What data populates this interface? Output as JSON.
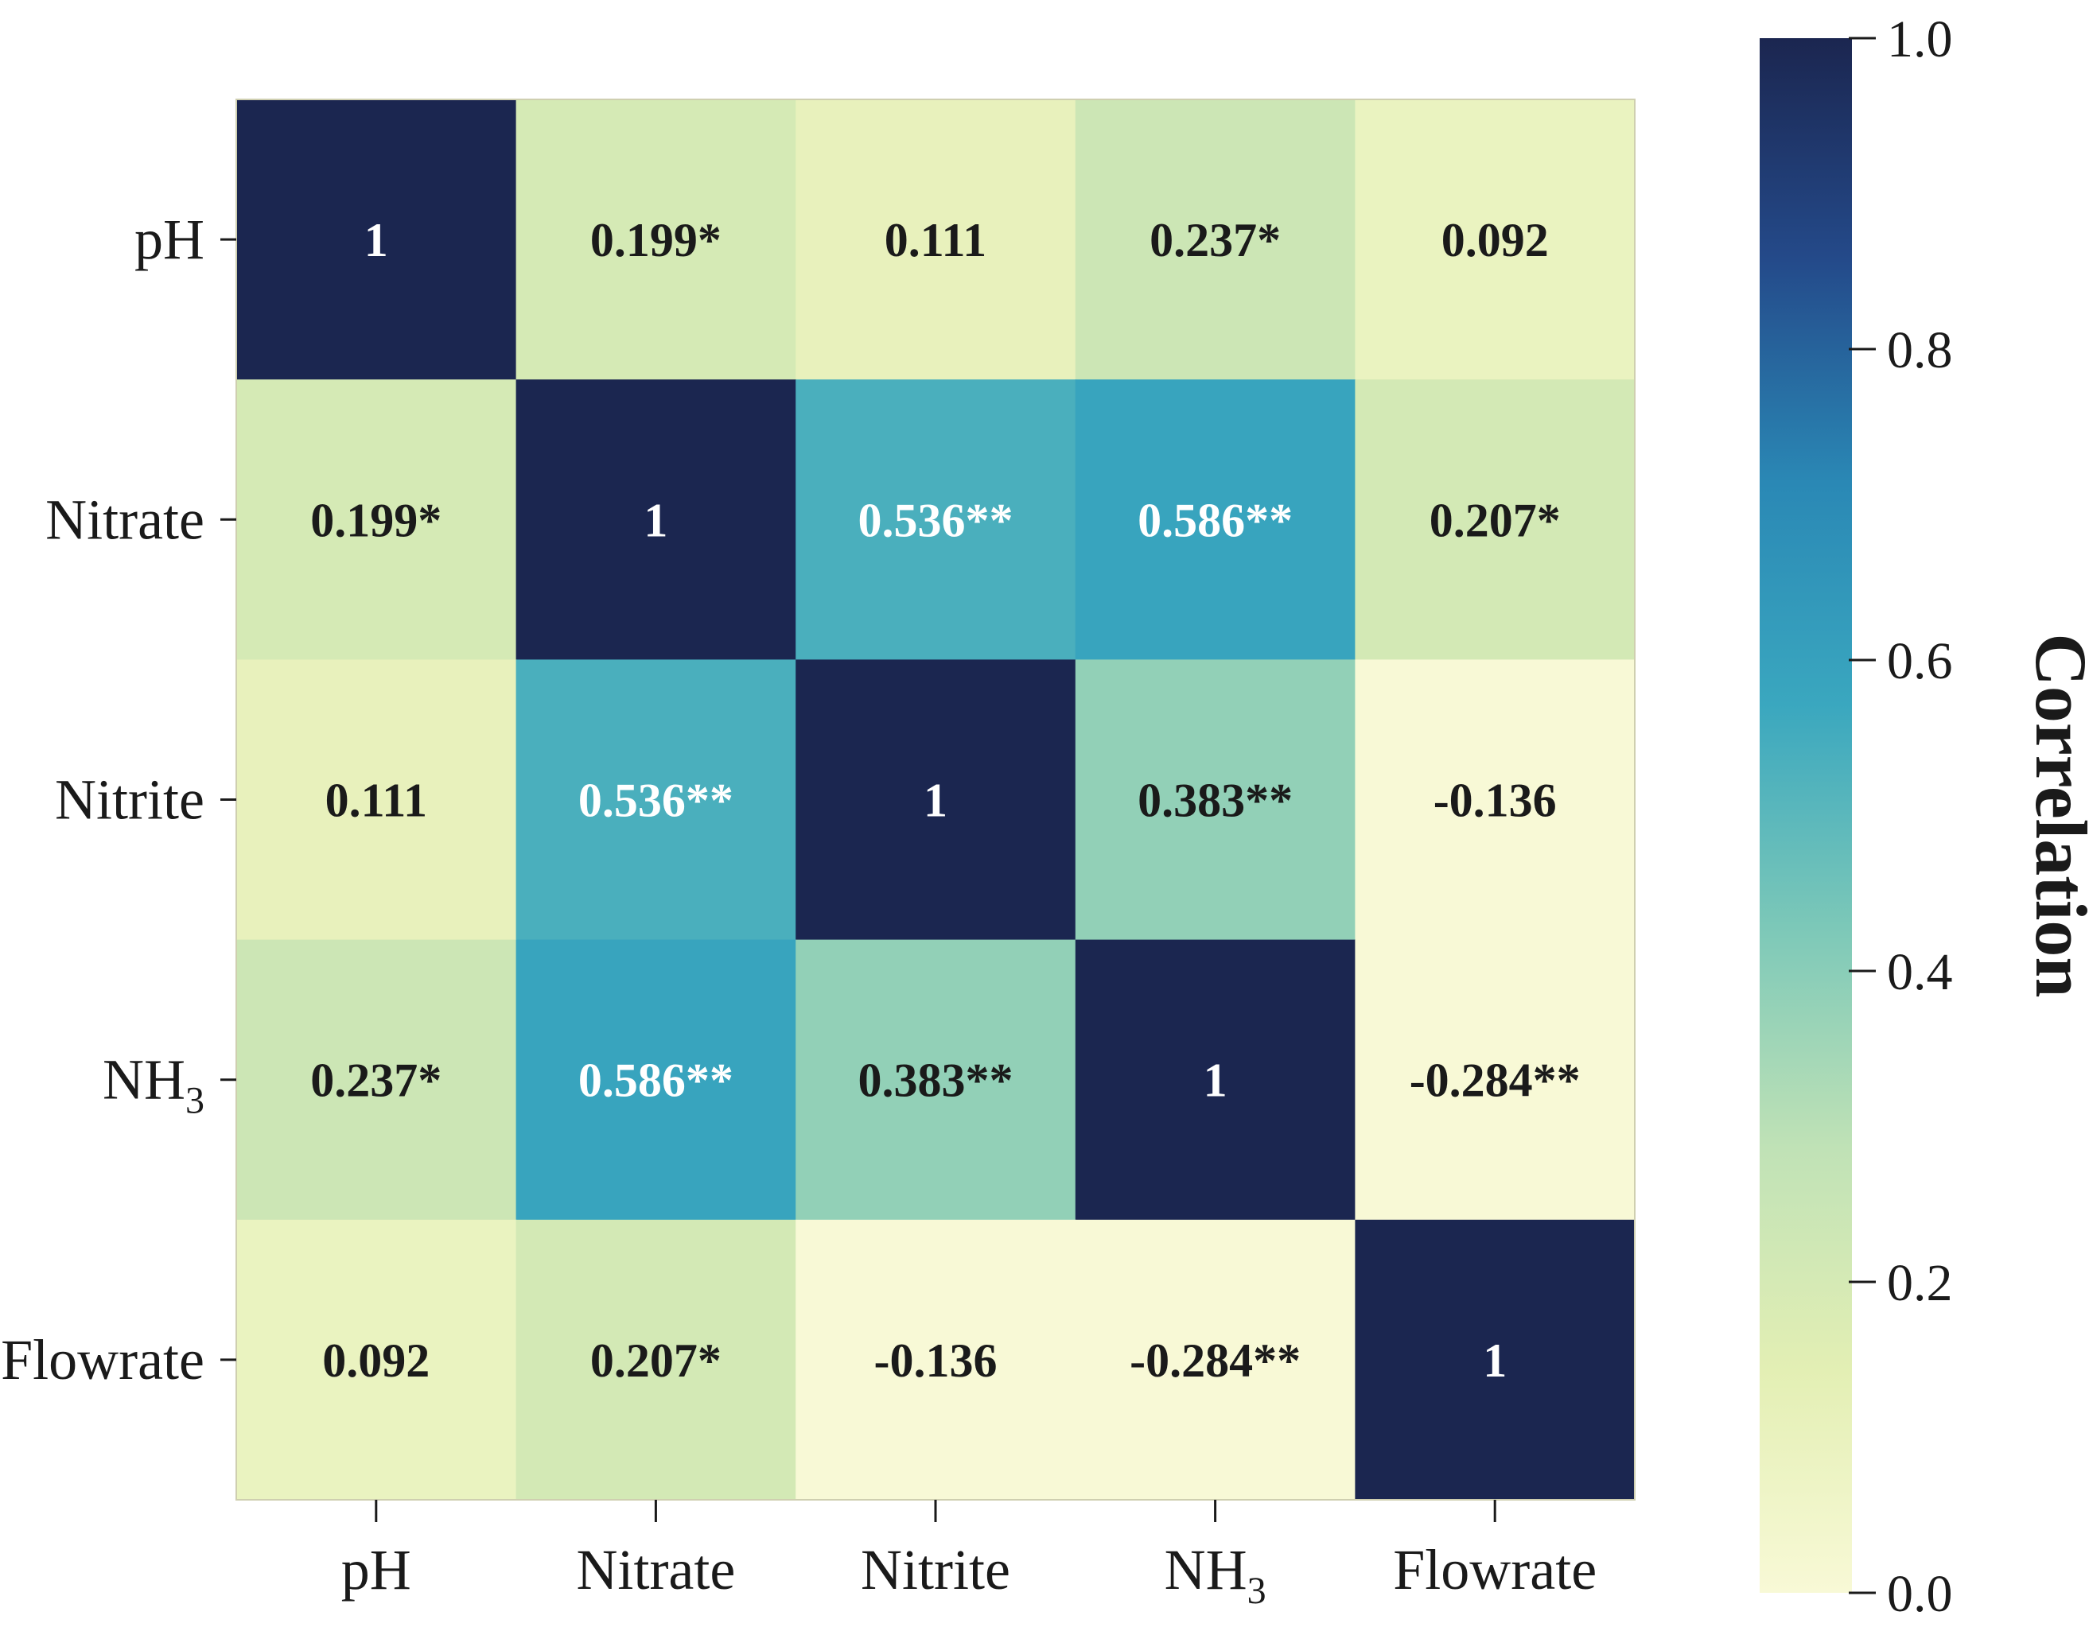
{
  "chart_data": {
    "type": "heatmap",
    "title": "",
    "row_labels": [
      {
        "base": "pH",
        "sub": ""
      },
      {
        "base": "Nitrate",
        "sub": ""
      },
      {
        "base": "Nitrite",
        "sub": ""
      },
      {
        "base": "NH",
        "sub": "3"
      },
      {
        "base": "Flowrate",
        "sub": ""
      }
    ],
    "col_labels": [
      {
        "base": "pH",
        "sub": ""
      },
      {
        "base": "Nitrate",
        "sub": ""
      },
      {
        "base": "Nitrite",
        "sub": ""
      },
      {
        "base": "NH",
        "sub": "3"
      },
      {
        "base": "Flowrate",
        "sub": ""
      }
    ],
    "values": [
      [
        1.0,
        0.199,
        0.111,
        0.237,
        0.092
      ],
      [
        0.199,
        1.0,
        0.536,
        0.586,
        0.207
      ],
      [
        0.111,
        0.536,
        1.0,
        0.383,
        -0.136
      ],
      [
        0.237,
        0.586,
        0.383,
        1.0,
        -0.284
      ],
      [
        0.092,
        0.207,
        -0.136,
        -0.284,
        1.0
      ]
    ],
    "cell_text": [
      [
        "1",
        "0.199*",
        "0.111",
        "0.237*",
        "0.092"
      ],
      [
        "0.199*",
        "1",
        "0.536**",
        "0.586**",
        "0.207*"
      ],
      [
        "0.111",
        "0.536**",
        "1",
        "0.383**",
        "-0.136"
      ],
      [
        "0.237*",
        "0.586**",
        "0.383**",
        "1",
        "-0.284**"
      ],
      [
        "0.092",
        "0.207*",
        "-0.136",
        "-0.284**",
        "1"
      ]
    ],
    "colorbar": {
      "label": "Correlation",
      "range": [
        0.0,
        1.0
      ],
      "ticks": [
        "0.0",
        "0.2",
        "0.4",
        "0.6",
        "0.8",
        "1.0"
      ],
      "colormap": [
        "#f8f9d6",
        "#e3efb4",
        "#c0e2b6",
        "#7cc8b8",
        "#3aa7bf",
        "#2a88b5",
        "#244a8a",
        "#1b2650"
      ]
    }
  }
}
